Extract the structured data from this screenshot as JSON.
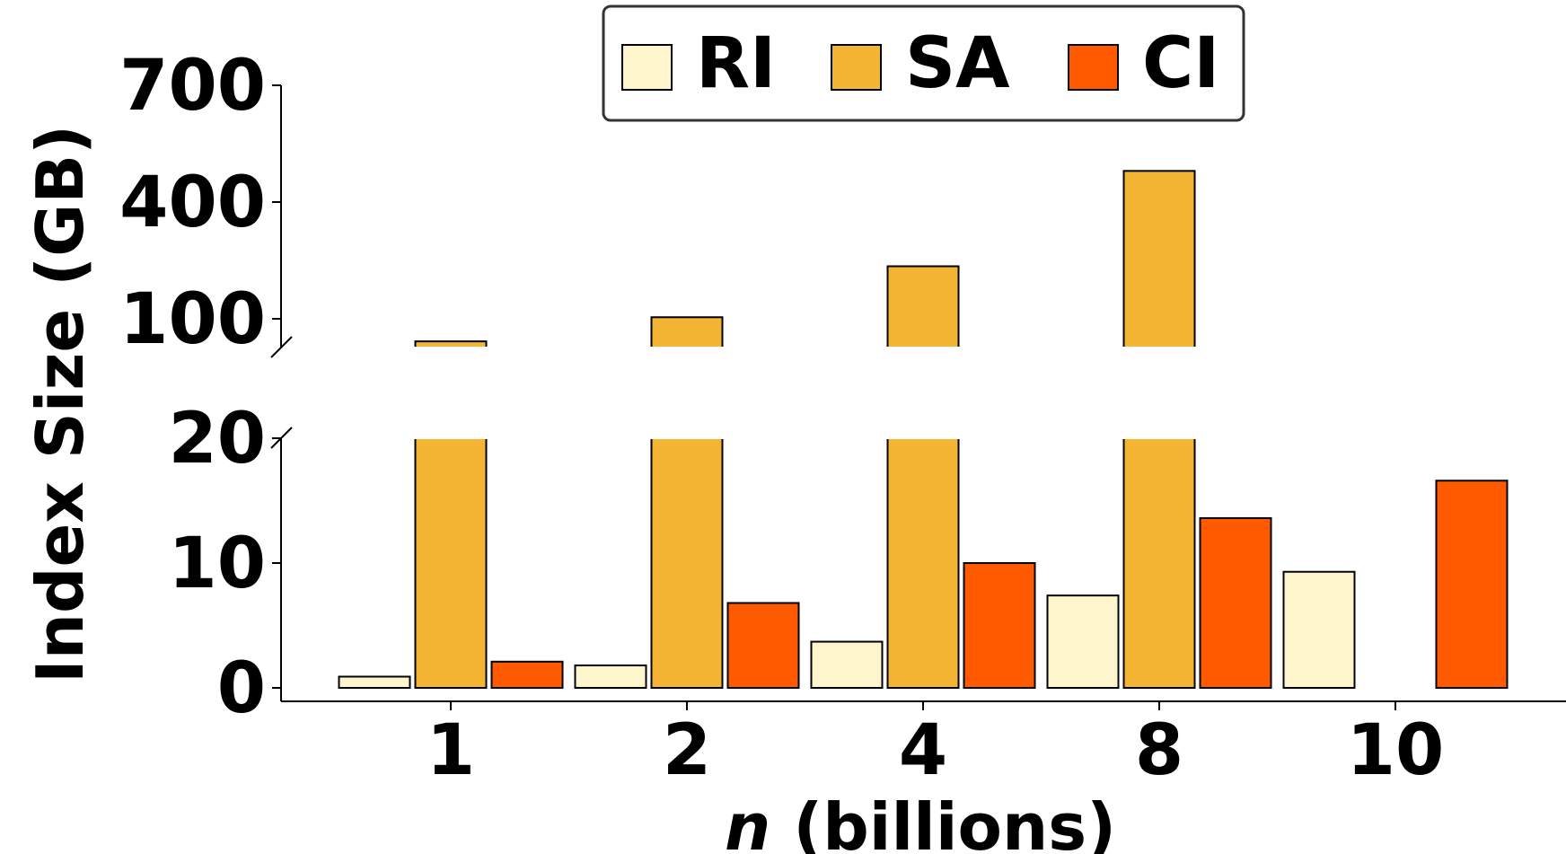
{
  "chart_data": {
    "type": "bar",
    "broken_y_axis": true,
    "xlabel": "n (billions)",
    "xlabel_italic_part": "n",
    "xlabel_rest": " (billions)",
    "ylabel": "Index Size (GB)",
    "categories": [
      "1",
      "2",
      "4",
      "8",
      "10"
    ],
    "series": [
      {
        "name": "RI",
        "color": "#fff5cc",
        "values": [
          0.9,
          1.8,
          3.7,
          7.4,
          9.3
        ]
      },
      {
        "name": "SA",
        "color": "#f4b535",
        "values": [
          42,
          104,
          235,
          480,
          null
        ]
      },
      {
        "name": "CI",
        "color": "#ff5a00",
        "values": [
          2.1,
          6.8,
          10.0,
          13.6,
          16.6
        ]
      }
    ],
    "lower_axis": {
      "ylim": [
        0,
        20
      ],
      "ticks": [
        0,
        10,
        20
      ]
    },
    "upper_axis": {
      "ylim": [
        25,
        700
      ],
      "ticks": [
        100,
        400,
        700
      ]
    },
    "legend": {
      "placement": "top-center",
      "entries": [
        "RI",
        "SA",
        "CI"
      ]
    }
  }
}
